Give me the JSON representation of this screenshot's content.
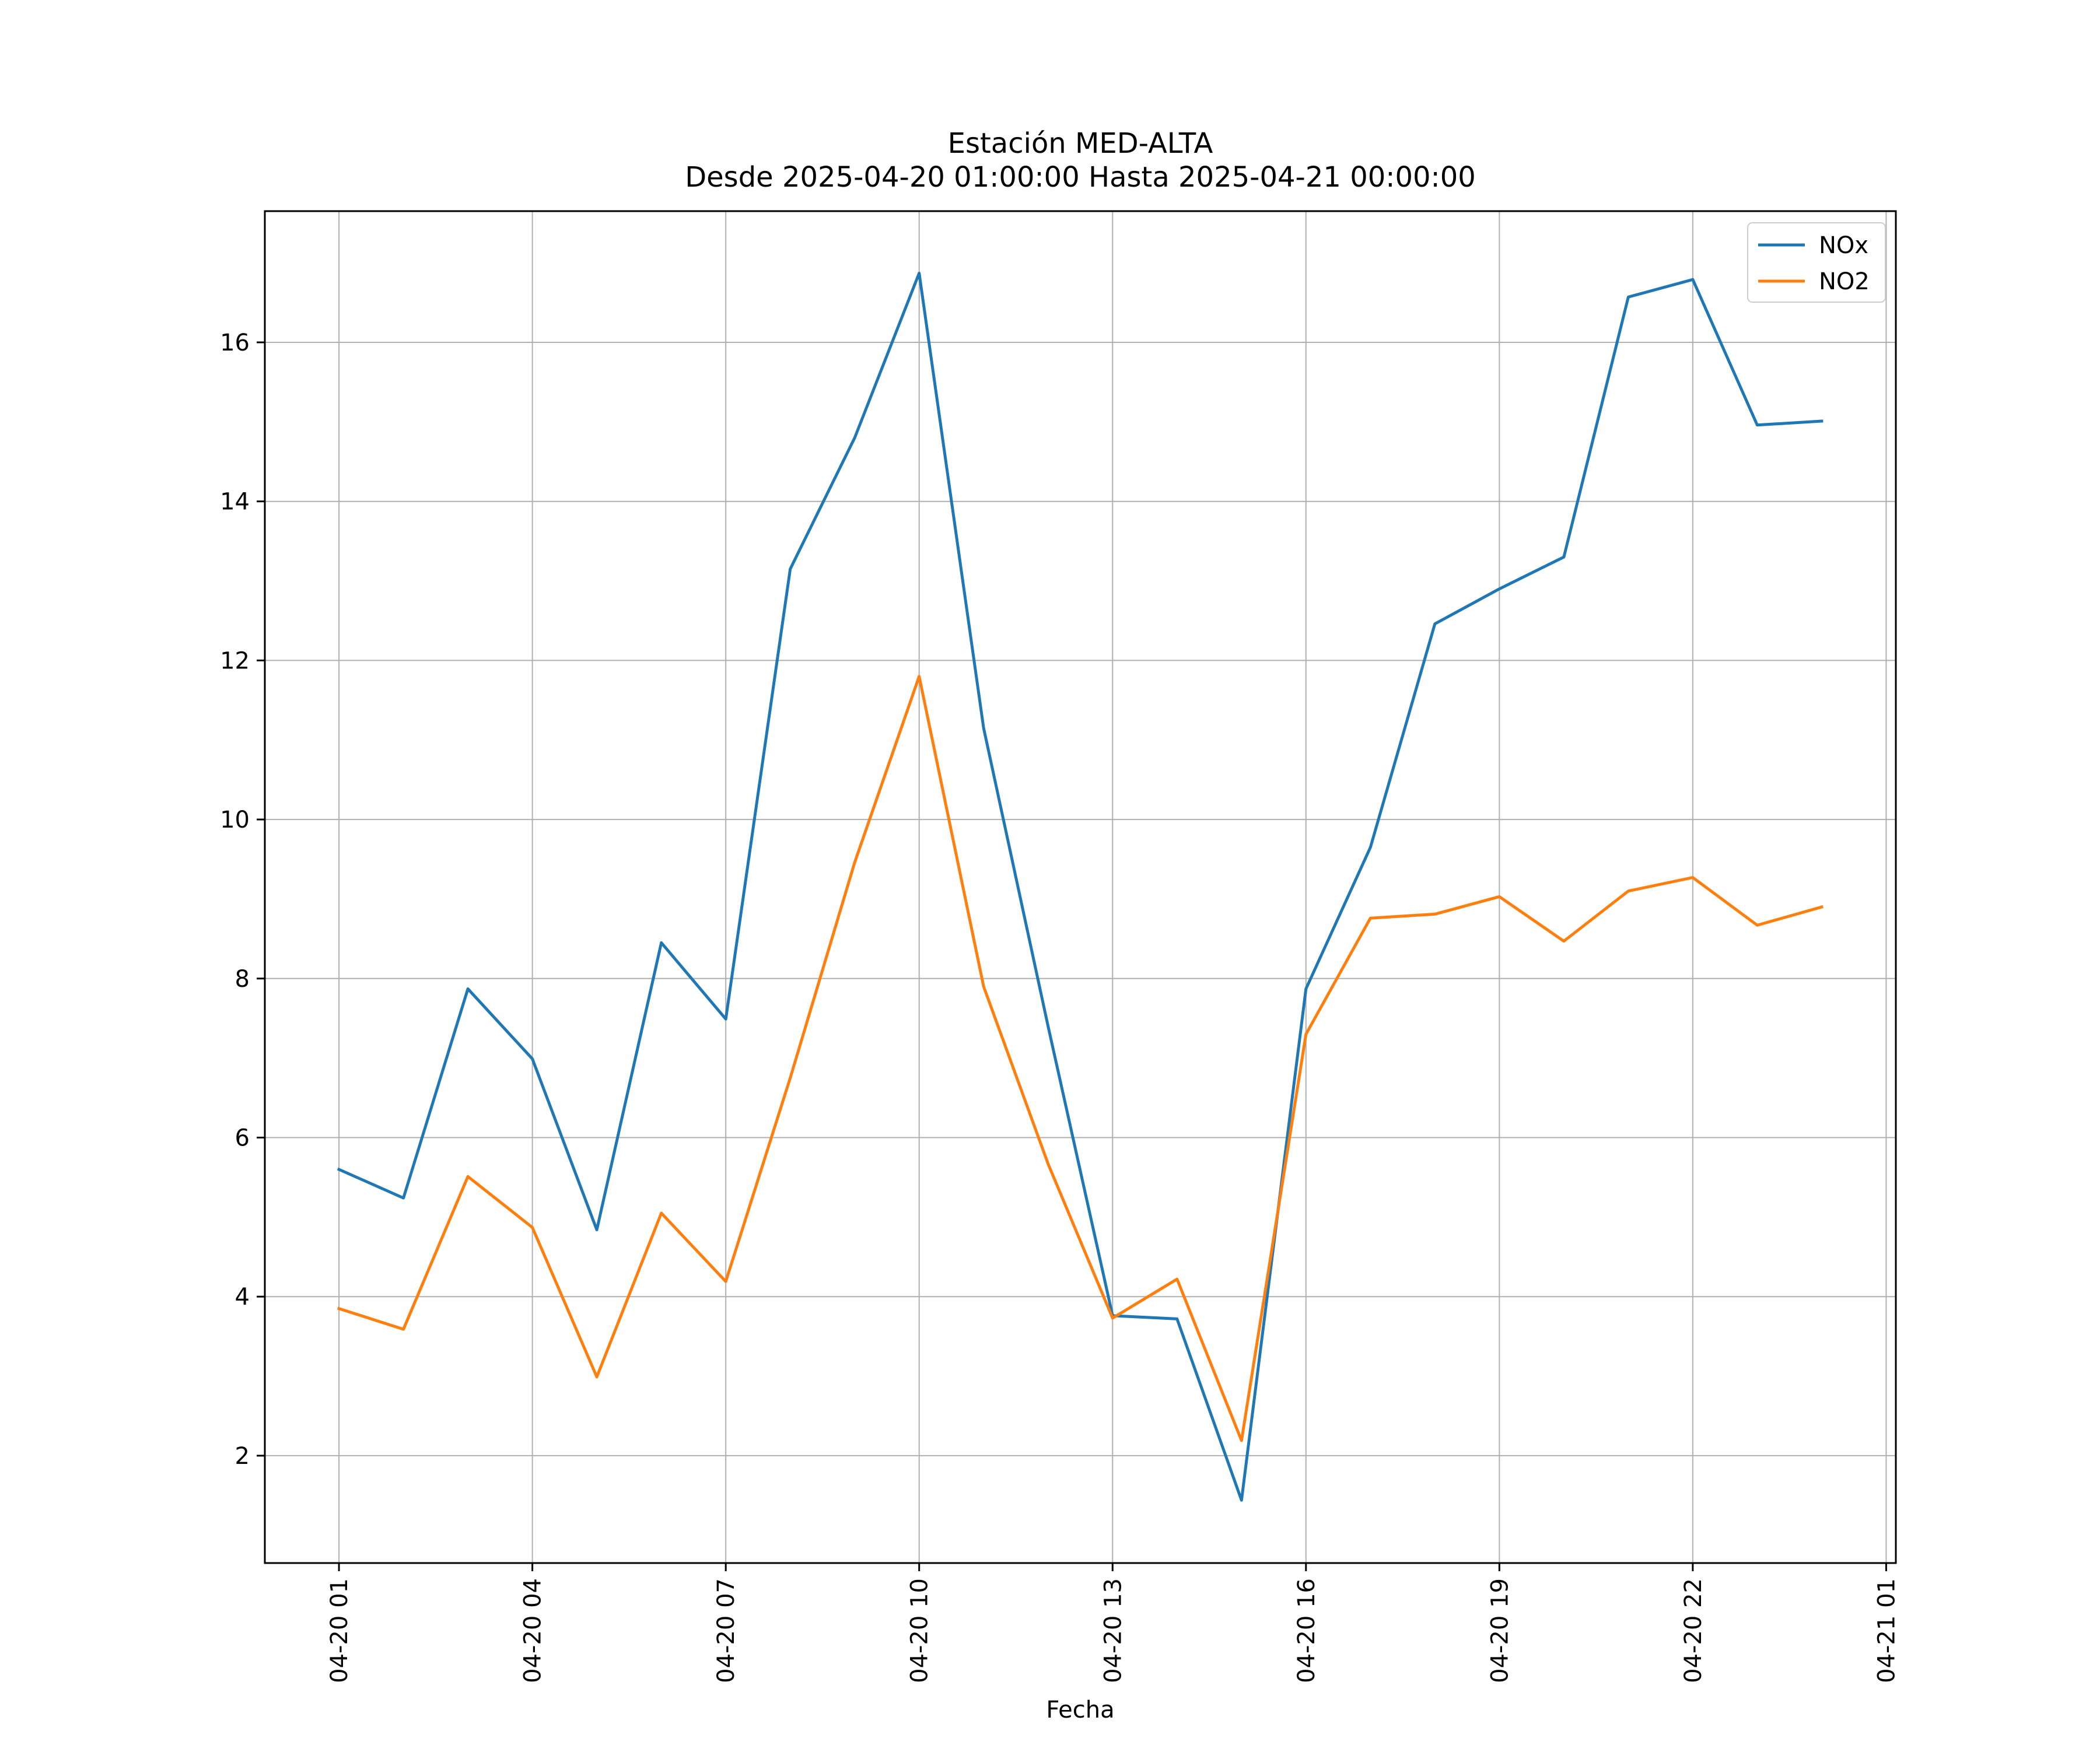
{
  "chart_data": {
    "type": "line",
    "title": "Estación MED-ALTA",
    "subtitle": "Desde 2025-04-20 01:00:00 Hasta 2025-04-21 00:00:00",
    "xlabel": "Fecha",
    "ylabel": "",
    "x": [
      "2025-04-20 01:00",
      "2025-04-20 02:00",
      "2025-04-20 03:00",
      "2025-04-20 04:00",
      "2025-04-20 05:00",
      "2025-04-20 06:00",
      "2025-04-20 07:00",
      "2025-04-20 08:00",
      "2025-04-20 09:00",
      "2025-04-20 10:00",
      "2025-04-20 11:00",
      "2025-04-20 12:00",
      "2025-04-20 13:00",
      "2025-04-20 14:00",
      "2025-04-20 15:00",
      "2025-04-20 16:00",
      "2025-04-20 17:00",
      "2025-04-20 18:00",
      "2025-04-20 19:00",
      "2025-04-20 20:00",
      "2025-04-20 21:00",
      "2025-04-20 22:00",
      "2025-04-20 23:00",
      "2025-04-21 00:00"
    ],
    "xlim": [
      "2025-04-19 23:51",
      "2025-04-21 01:09"
    ],
    "x_ticks": [
      {
        "value": "2025-04-20 01:00",
        "label": "04-20 01"
      },
      {
        "value": "2025-04-20 04:00",
        "label": "04-20 04"
      },
      {
        "value": "2025-04-20 07:00",
        "label": "04-20 07"
      },
      {
        "value": "2025-04-20 10:00",
        "label": "04-20 10"
      },
      {
        "value": "2025-04-20 13:00",
        "label": "04-20 13"
      },
      {
        "value": "2025-04-20 16:00",
        "label": "04-20 16"
      },
      {
        "value": "2025-04-20 19:00",
        "label": "04-20 19"
      },
      {
        "value": "2025-04-20 22:00",
        "label": "04-20 22"
      },
      {
        "value": "2025-04-21 01:00",
        "label": "04-21 01"
      }
    ],
    "ylim": [
      0.65,
      17.65
    ],
    "y_ticks": [
      2,
      4,
      6,
      8,
      10,
      12,
      14,
      16
    ],
    "grid": true,
    "legend_position": "top-right",
    "series": [
      {
        "name": "NOx",
        "color": "#1f77b4",
        "values": [
          5.6,
          5.24,
          7.87,
          6.99,
          4.84,
          8.45,
          7.49,
          13.15,
          14.8,
          16.87,
          11.15,
          7.4,
          3.76,
          3.72,
          1.44,
          7.87,
          9.65,
          12.46,
          12.9,
          13.3,
          16.57,
          16.79,
          14.96,
          15.01
        ]
      },
      {
        "name": "NO2",
        "color": "#ff7f0e",
        "values": [
          3.85,
          3.59,
          5.51,
          4.87,
          2.99,
          5.05,
          4.19,
          6.75,
          9.46,
          11.8,
          7.9,
          5.67,
          3.73,
          4.22,
          2.19,
          7.3,
          8.76,
          8.81,
          9.03,
          8.47,
          9.1,
          9.27,
          8.67,
          8.9
        ]
      }
    ]
  }
}
